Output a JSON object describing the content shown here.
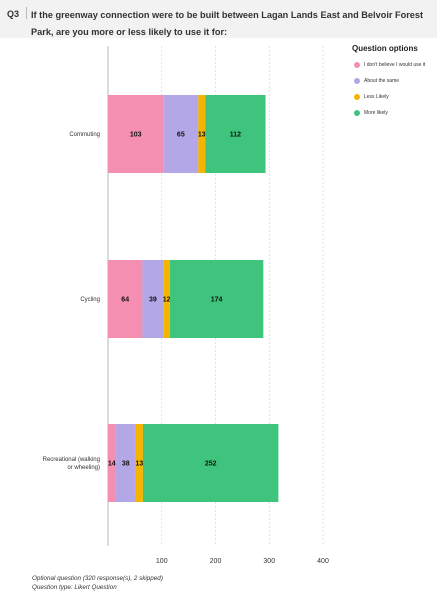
{
  "header": {
    "question_number": "Q3",
    "question_text": "If the greenway connection were to be built between Lagan Lands East and Belvoir Forest Park, are you more or less likely to use it for:"
  },
  "legend": {
    "title": "Question options",
    "placement": "top-right"
  },
  "footer": {
    "line1": "Optional question (320 response(s), 2 skipped)",
    "line2": "Question type: Likert Question"
  },
  "chart_data": {
    "type": "bar",
    "orientation": "horizontal",
    "stacked": true,
    "categories": [
      "Commuting",
      "Cycling",
      "Recreational (walking or wheeling)"
    ],
    "series": [
      {
        "name": "I don't believe I would use it",
        "color": "#f48fb1",
        "values": [
          103,
          64,
          14
        ]
      },
      {
        "name": "About the same",
        "color": "#b4a7e8",
        "values": [
          65,
          39,
          38
        ]
      },
      {
        "name": "Less Likely",
        "color": "#f4b400",
        "values": [
          13,
          12,
          13
        ]
      },
      {
        "name": "More likely",
        "color": "#3ec47c",
        "values": [
          112,
          174,
          252
        ]
      }
    ],
    "xlim": [
      0,
      400
    ],
    "xticks": [
      100,
      200,
      300,
      400
    ],
    "grid": true
  }
}
